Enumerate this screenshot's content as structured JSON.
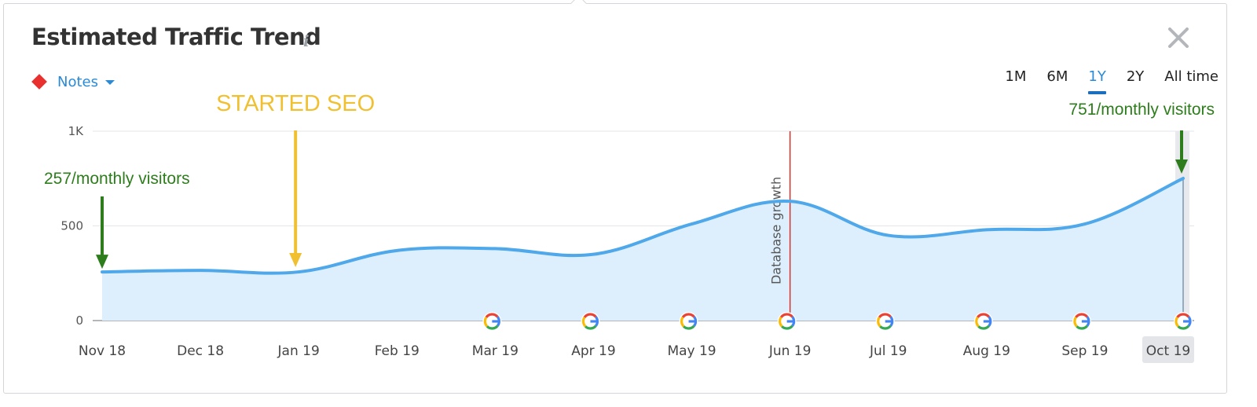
{
  "header": {
    "title": "Estimated Traffic Trend",
    "info_icon": "info-icon",
    "close_icon": "close-icon"
  },
  "notes": {
    "label": "Notes",
    "marker_color": "#e8312f"
  },
  "periods": [
    {
      "label": "1M",
      "active": false
    },
    {
      "label": "6M",
      "active": false
    },
    {
      "label": "1Y",
      "active": true
    },
    {
      "label": "2Y",
      "active": false
    },
    {
      "label": "All time",
      "active": false
    }
  ],
  "chart_data": {
    "type": "area",
    "categories": [
      "Nov 18",
      "Dec 18",
      "Jan 19",
      "Feb 19",
      "Mar 19",
      "Apr 19",
      "May 19",
      "Jun 19",
      "Jul 19",
      "Aug 19",
      "Sep 19",
      "Oct 19"
    ],
    "values": [
      257,
      265,
      257,
      370,
      380,
      350,
      510,
      630,
      450,
      480,
      510,
      751
    ],
    "y_ticks": [
      {
        "value": 0,
        "label": "0"
      },
      {
        "value": 500,
        "label": "500"
      },
      {
        "value": 1000,
        "label": "1K"
      }
    ],
    "ylim": [
      0,
      1000
    ],
    "grid": true,
    "line_color": "#4ea8ea",
    "fill_color": "#ddeefc",
    "selected_category": "Oct 19",
    "google_update_months": [
      "Mar 19",
      "Apr 19",
      "May 19",
      "Jun 19",
      "Jul 19",
      "Aug 19",
      "Sep 19",
      "Oct 19"
    ],
    "event_line": {
      "at": "Jun 19",
      "label": "Database growth",
      "color": "#d9312b"
    },
    "annotations": [
      {
        "text": "257/monthly visitors",
        "at": "Nov 18",
        "color": "#2e7d1c"
      },
      {
        "text": "STARTED SEO",
        "at": "Jan 19",
        "color": "#f0c030"
      },
      {
        "text": "751/monthly visitors",
        "at": "Oct 19",
        "color": "#2e7d1c"
      }
    ]
  }
}
